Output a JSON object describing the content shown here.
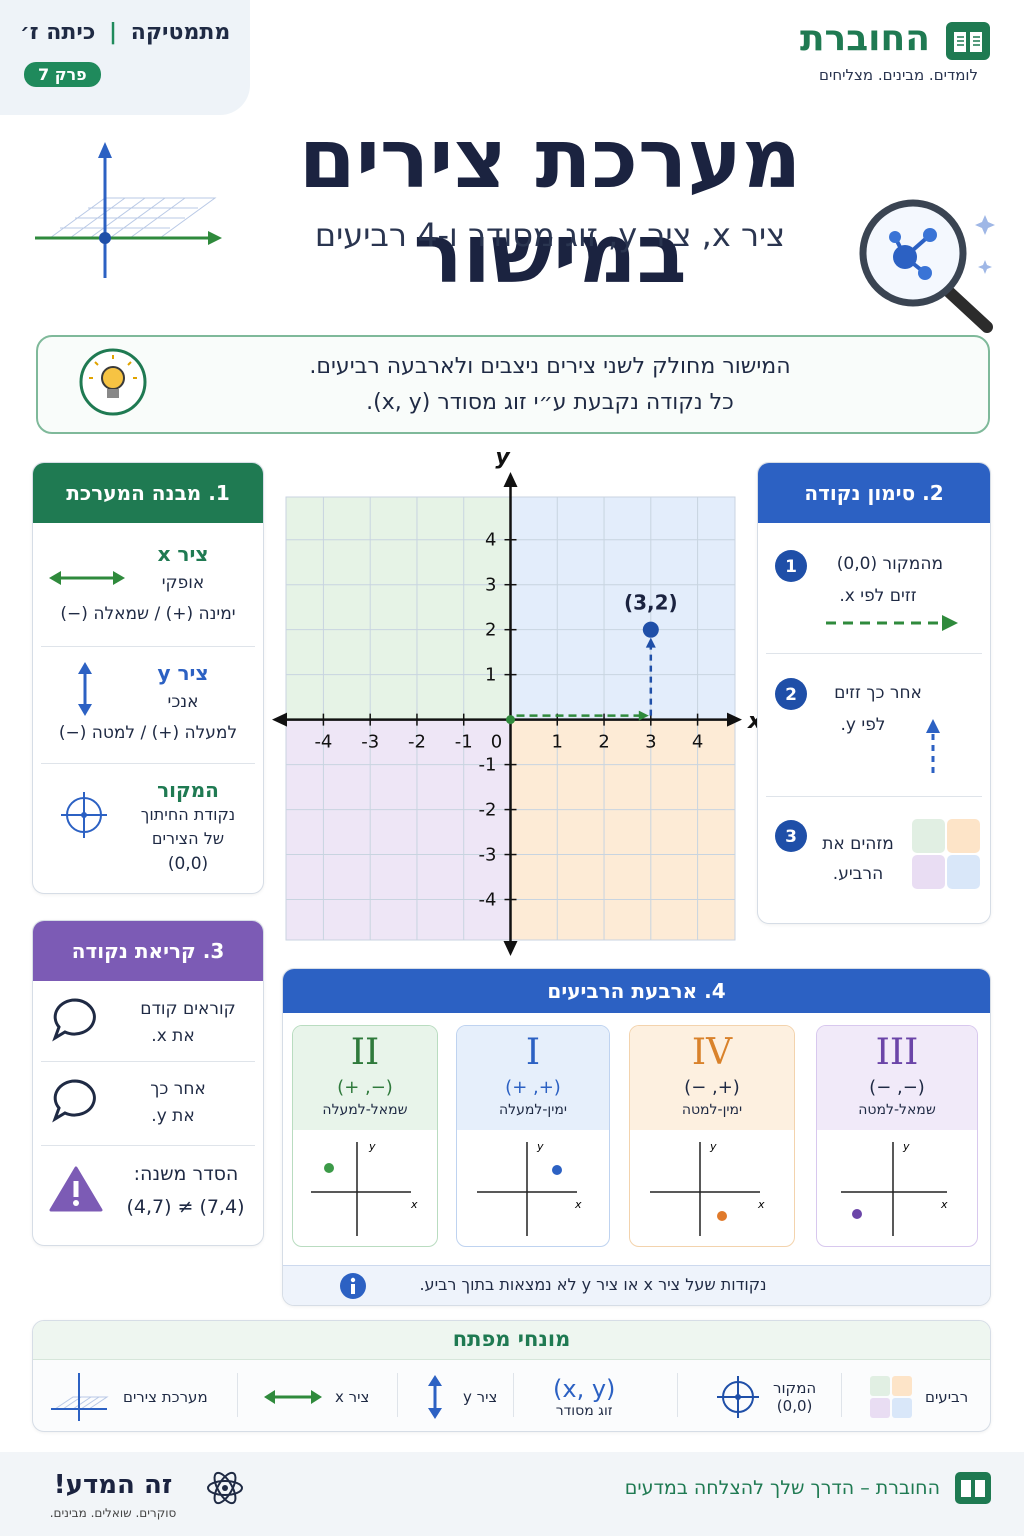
{
  "header": {
    "subject": "מתמטיקה",
    "grade": "כיתה ז׳",
    "chapter": "פרק 7",
    "brand": "החוברת",
    "tagline": "לומדים. מבינים. מצליחים"
  },
  "title": "מערכת צירים במישור",
  "subtitle": "ציר x, ציר y, זוג מסודר ו-4 רביעים",
  "intro": {
    "line1": "המישור מחולק לשני צירים ניצבים ולארבעה רביעים.",
    "line2": "כל נקודה נקבעת ע״י זוג מסודר (x, y)."
  },
  "structure": {
    "title": "1. מבנה המערכת",
    "items": [
      {
        "name": "ציר x",
        "kind": "אופקי",
        "note": "ימינה (+) / שמאלה (−)"
      },
      {
        "name": "ציר y",
        "kind": "אנכי",
        "note": "למעלה (+) / למטה (−)"
      },
      {
        "name": "המקור",
        "kind": "נקודת החיתוך של הצירים",
        "note": "(0,0)"
      }
    ]
  },
  "chart_data": {
    "type": "scatter",
    "x_label": "x",
    "y_label": "y",
    "origin_label": "0",
    "xlim": [
      -4.8,
      4.8
    ],
    "ylim": [
      -4.9,
      4.95
    ],
    "xticks": [
      -4,
      -3,
      -2,
      -1,
      1,
      2,
      3,
      4
    ],
    "yticks": [
      -4,
      -3,
      -2,
      -1,
      1,
      2,
      3,
      4
    ],
    "grid": true,
    "quadrant_colors": {
      "I": "#e3edfb",
      "II": "#e6f3e6",
      "III": "#eee6f6",
      "IV": "#fdebd6"
    },
    "series": [
      {
        "name": "(3,2)",
        "color": "#1f4fa8",
        "x": [
          3
        ],
        "values": [
          2
        ]
      }
    ]
  },
  "marking": {
    "title": "2. סימון נקודה",
    "steps": [
      {
        "n": "1",
        "line1": "מהמקור (0,0)",
        "line2": "זזים לפי x."
      },
      {
        "n": "2",
        "line1": "אחר כך זזים",
        "line2": "לפי y."
      },
      {
        "n": "3",
        "line1": "מזהים את",
        "line2": "הרביע."
      }
    ]
  },
  "reading": {
    "title": "3. קריאת נקודה",
    "items": [
      {
        "line1": "קוראים קודם",
        "line2": "את x."
      },
      {
        "line1": "אחר כך",
        "line2": "את y."
      }
    ],
    "warning": {
      "title": "הסדר משנה:",
      "example": "(4,7) ≠ (7,4)"
    }
  },
  "quadrants": {
    "title": "4. ארבעת הרביעים",
    "axis_x": "x",
    "axis_y": "y",
    "items": [
      {
        "numeral": "II",
        "signs": "(−, +)",
        "desc": "שמאל-למעלה"
      },
      {
        "numeral": "I",
        "signs": "(+, +)",
        "desc": "ימין-למעלה"
      },
      {
        "numeral": "IV",
        "signs": "(+, −)",
        "desc": "ימין-למטה"
      },
      {
        "numeral": "III",
        "signs": "(−, −)",
        "desc": "שמאל-למטה"
      }
    ],
    "note": "נקודות שעל ציר x או ציר y לא נמצאות בתוך רביע."
  },
  "terms": {
    "title": "מונחי מפתח",
    "quadrants": "רביעים",
    "origin": "המקור",
    "origin_value": "(0,0)",
    "pair": "(x, y)",
    "pair_name": "זוג מסודר",
    "y_axis": "ציר y",
    "x_axis": "ציר x",
    "system": "מערכת צירים"
  },
  "footer": {
    "brand": "החוברת – הדרך שלך להצלחה במדעים",
    "logo": "זה המדע!",
    "logo_tagline": "סוקרים. שואלים. מבינים."
  }
}
